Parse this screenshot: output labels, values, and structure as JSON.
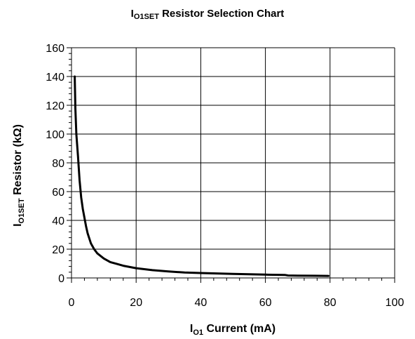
{
  "chart_data": {
    "type": "line",
    "title": {
      "main": "I",
      "sub": "O1SET",
      "rest": " Resistor Selection Chart"
    },
    "xlabel": {
      "main": "I",
      "sub": "O1",
      "rest": " Current (mA)"
    },
    "ylabel": {
      "main": "I",
      "sub": "O1SET",
      "rest": " Resistor (kΩ)"
    },
    "xlim": [
      0,
      100
    ],
    "ylim": [
      0,
      160
    ],
    "x_ticks": [
      0,
      20,
      40,
      60,
      80,
      100
    ],
    "y_ticks": [
      0,
      20,
      40,
      60,
      80,
      100,
      120,
      140,
      160
    ],
    "x_tick_labels": [
      "0",
      "20",
      "40",
      "60",
      "80",
      "100"
    ],
    "y_tick_labels": [
      "0",
      "20",
      "40",
      "60",
      "80",
      "100",
      "120",
      "140",
      "160"
    ],
    "grid": true,
    "line_color": "#000000",
    "series": [
      {
        "x": [
          1,
          1.2,
          1.5,
          2,
          2.5,
          3,
          3.5,
          4,
          4.5,
          5,
          6,
          7,
          8,
          10,
          12,
          14,
          16,
          18,
          20,
          25,
          30,
          35,
          40,
          50,
          60,
          66,
          67,
          70,
          75,
          79.5
        ],
        "y": [
          140,
          118,
          100,
          85,
          68,
          56,
          48,
          42,
          36,
          31,
          24,
          20,
          17,
          13.5,
          11,
          9.8,
          8.5,
          7.6,
          6.8,
          5.4,
          4.5,
          3.8,
          3.4,
          2.8,
          2.3,
          2.1,
          1.7,
          1.6,
          1.5,
          1.4
        ]
      }
    ]
  }
}
